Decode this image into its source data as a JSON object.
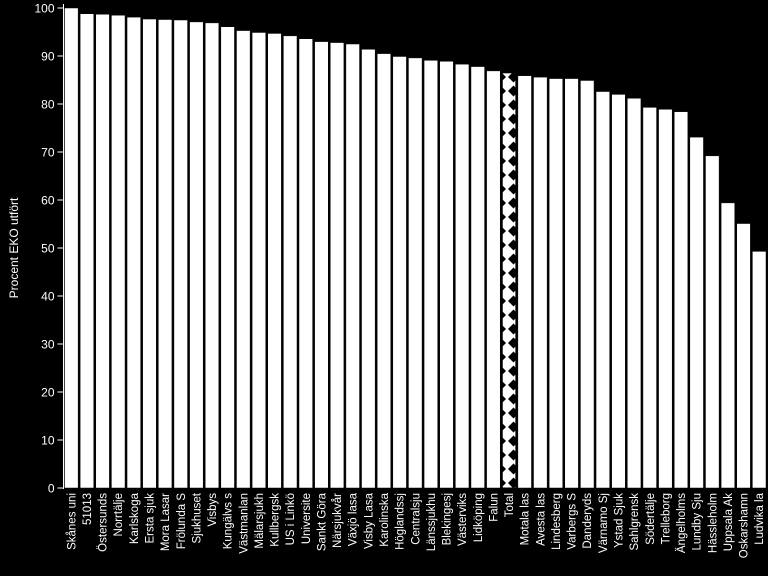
{
  "chart_data": {
    "type": "bar",
    "title": "",
    "xlabel": "",
    "ylabel": "Procent EKO utfört",
    "ylim": [
      0,
      100
    ],
    "yticks": [
      0,
      10,
      20,
      30,
      40,
      50,
      60,
      70,
      80,
      90,
      100
    ],
    "grid": false,
    "legend": "none",
    "colors": {
      "background": "#000000",
      "bar_fill": "#ffffff",
      "bar_stroke": "#000000",
      "axis": "#ffffff",
      "text": "#ffffff",
      "highlight_pattern": "#000000"
    },
    "highlight_category": "Total",
    "categories": [
      "Skånes uni",
      "51013",
      "Östersunds",
      "Norrtälje",
      "Karlskoga",
      "Ersta sjuk",
      "Mora Lasar",
      "Frölunda S",
      "Sjukhuset",
      "Visbys",
      "Kungälvs s",
      "Västmanlan",
      "Mälarsjukh",
      "Kullbergsk",
      "US i Linkö",
      "Universite",
      "Sankt Göra",
      "Närsjukvår",
      "Växjö lasa",
      "Visby Lasa",
      "Karolinska",
      "Höglandssj",
      "Centralsju",
      "Länssjukhu",
      "Blekingesj",
      "Västerviks",
      "Lidköping",
      "Falun",
      "Total",
      "Motala las",
      "Avesta las",
      "Lindesberg",
      "Varbergs S",
      "Danderyds",
      "Värnamo Sj",
      "Ystad Sjuk",
      "Sahlgrensk",
      "Södertälje",
      "Trelleborg",
      "Ängelholms",
      "Lundby Sju",
      "Hässleholm",
      "Uppsala Ak",
      "Oskarshamn",
      "Ludvika la"
    ],
    "values": [
      100,
      98.8,
      98.7,
      98.5,
      98.1,
      97.7,
      97.6,
      97.5,
      97.1,
      96.9,
      96.1,
      95.3,
      94.9,
      94.7,
      94.2,
      93.6,
      93.0,
      92.8,
      92.5,
      91.4,
      90.5,
      89.9,
      89.6,
      89.1,
      88.9,
      88.3,
      87.8,
      86.9,
      86.5,
      85.9,
      85.6,
      85.3,
      85.3,
      84.9,
      82.6,
      82.0,
      81.2,
      79.3,
      78.9,
      78.4,
      73.1,
      69.2,
      59.4,
      55.1,
      49.3
    ]
  }
}
